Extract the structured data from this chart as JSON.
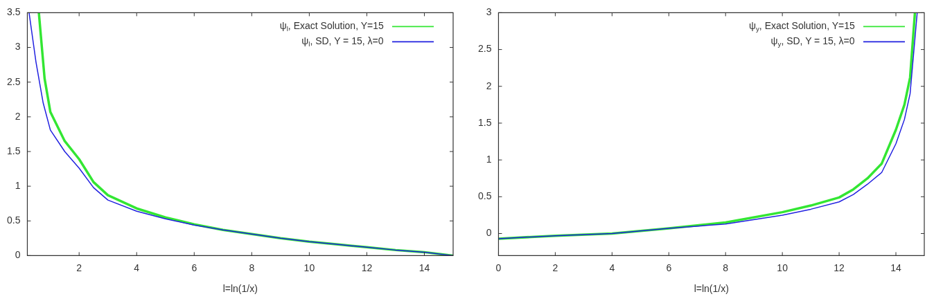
{
  "chart_data": [
    {
      "type": "line",
      "xlabel": "l=ln(1/x)",
      "xlim": [
        0.2,
        15
      ],
      "ylim": [
        0,
        3.5
      ],
      "xticks": [
        2,
        4,
        6,
        8,
        10,
        12,
        14
      ],
      "yticks": [
        0,
        0.5,
        1,
        1.5,
        2,
        2.5,
        3,
        3.5
      ],
      "grid": false,
      "legend": "top right",
      "marker": "none",
      "line_style": "solid",
      "series": [
        {
          "name": "ψ$_{l}$, Exact Solution, Y=15",
          "color": "#33e633",
          "x": [
            0.6,
            0.8,
            1,
            1.5,
            2,
            2.5,
            3,
            4,
            5,
            6,
            7,
            8,
            9,
            10,
            11,
            12,
            13,
            14,
            15
          ],
          "values": [
            3.5,
            2.55,
            2.07,
            1.65,
            1.39,
            1.06,
            0.87,
            0.68,
            0.55,
            0.45,
            0.37,
            0.31,
            0.25,
            0.2,
            0.16,
            0.12,
            0.08,
            0.05,
            0
          ]
        },
        {
          "name": "ψ$_{l}$, SD, Y = 15, λ=0",
          "color": "#2020e0",
          "x": [
            0.26,
            0.5,
            0.75,
            1,
            1.5,
            2,
            2.5,
            3,
            4,
            5,
            6,
            7,
            8,
            9,
            10,
            11,
            12,
            13,
            14,
            15
          ],
          "values": [
            3.5,
            2.79,
            2.2,
            1.81,
            1.5,
            1.26,
            0.98,
            0.8,
            0.64,
            0.53,
            0.44,
            0.37,
            0.31,
            0.25,
            0.2,
            0.16,
            0.12,
            0.08,
            0.05,
            0
          ]
        }
      ]
    },
    {
      "type": "line",
      "xlabel": "l=ln(1/x)",
      "xlim": [
        0,
        15
      ],
      "ylim": [
        -0.3,
        3
      ],
      "xticks": [
        0,
        2,
        4,
        6,
        8,
        10,
        12,
        14
      ],
      "yticks": [
        0,
        0.5,
        1,
        1.5,
        2,
        2.5,
        3
      ],
      "grid": false,
      "legend": "top right",
      "marker": "none",
      "line_style": "solid",
      "series": [
        {
          "name": "ψ$_{y}$, Exact Solution, Y=15",
          "color": "#33e633",
          "x": [
            0,
            2,
            4,
            6,
            8,
            10,
            11,
            12,
            12.5,
            13,
            13.5,
            14,
            14.3,
            14.5,
            14.67
          ],
          "values": [
            -0.07,
            -0.03,
            0,
            0.07,
            0.15,
            0.29,
            0.38,
            0.49,
            0.6,
            0.75,
            0.95,
            1.41,
            1.75,
            2.12,
            3
          ]
        },
        {
          "name": "ψ$_{y}$, SD, Y = 15, λ=0",
          "color": "#2020e0",
          "x": [
            0,
            2,
            4,
            6,
            8,
            10,
            11,
            12,
            12.5,
            13,
            13.5,
            14,
            14.3,
            14.5,
            14.75
          ],
          "values": [
            -0.07,
            -0.03,
            0,
            0.07,
            0.13,
            0.25,
            0.33,
            0.43,
            0.53,
            0.67,
            0.83,
            1.22,
            1.55,
            1.9,
            3
          ]
        }
      ]
    }
  ]
}
